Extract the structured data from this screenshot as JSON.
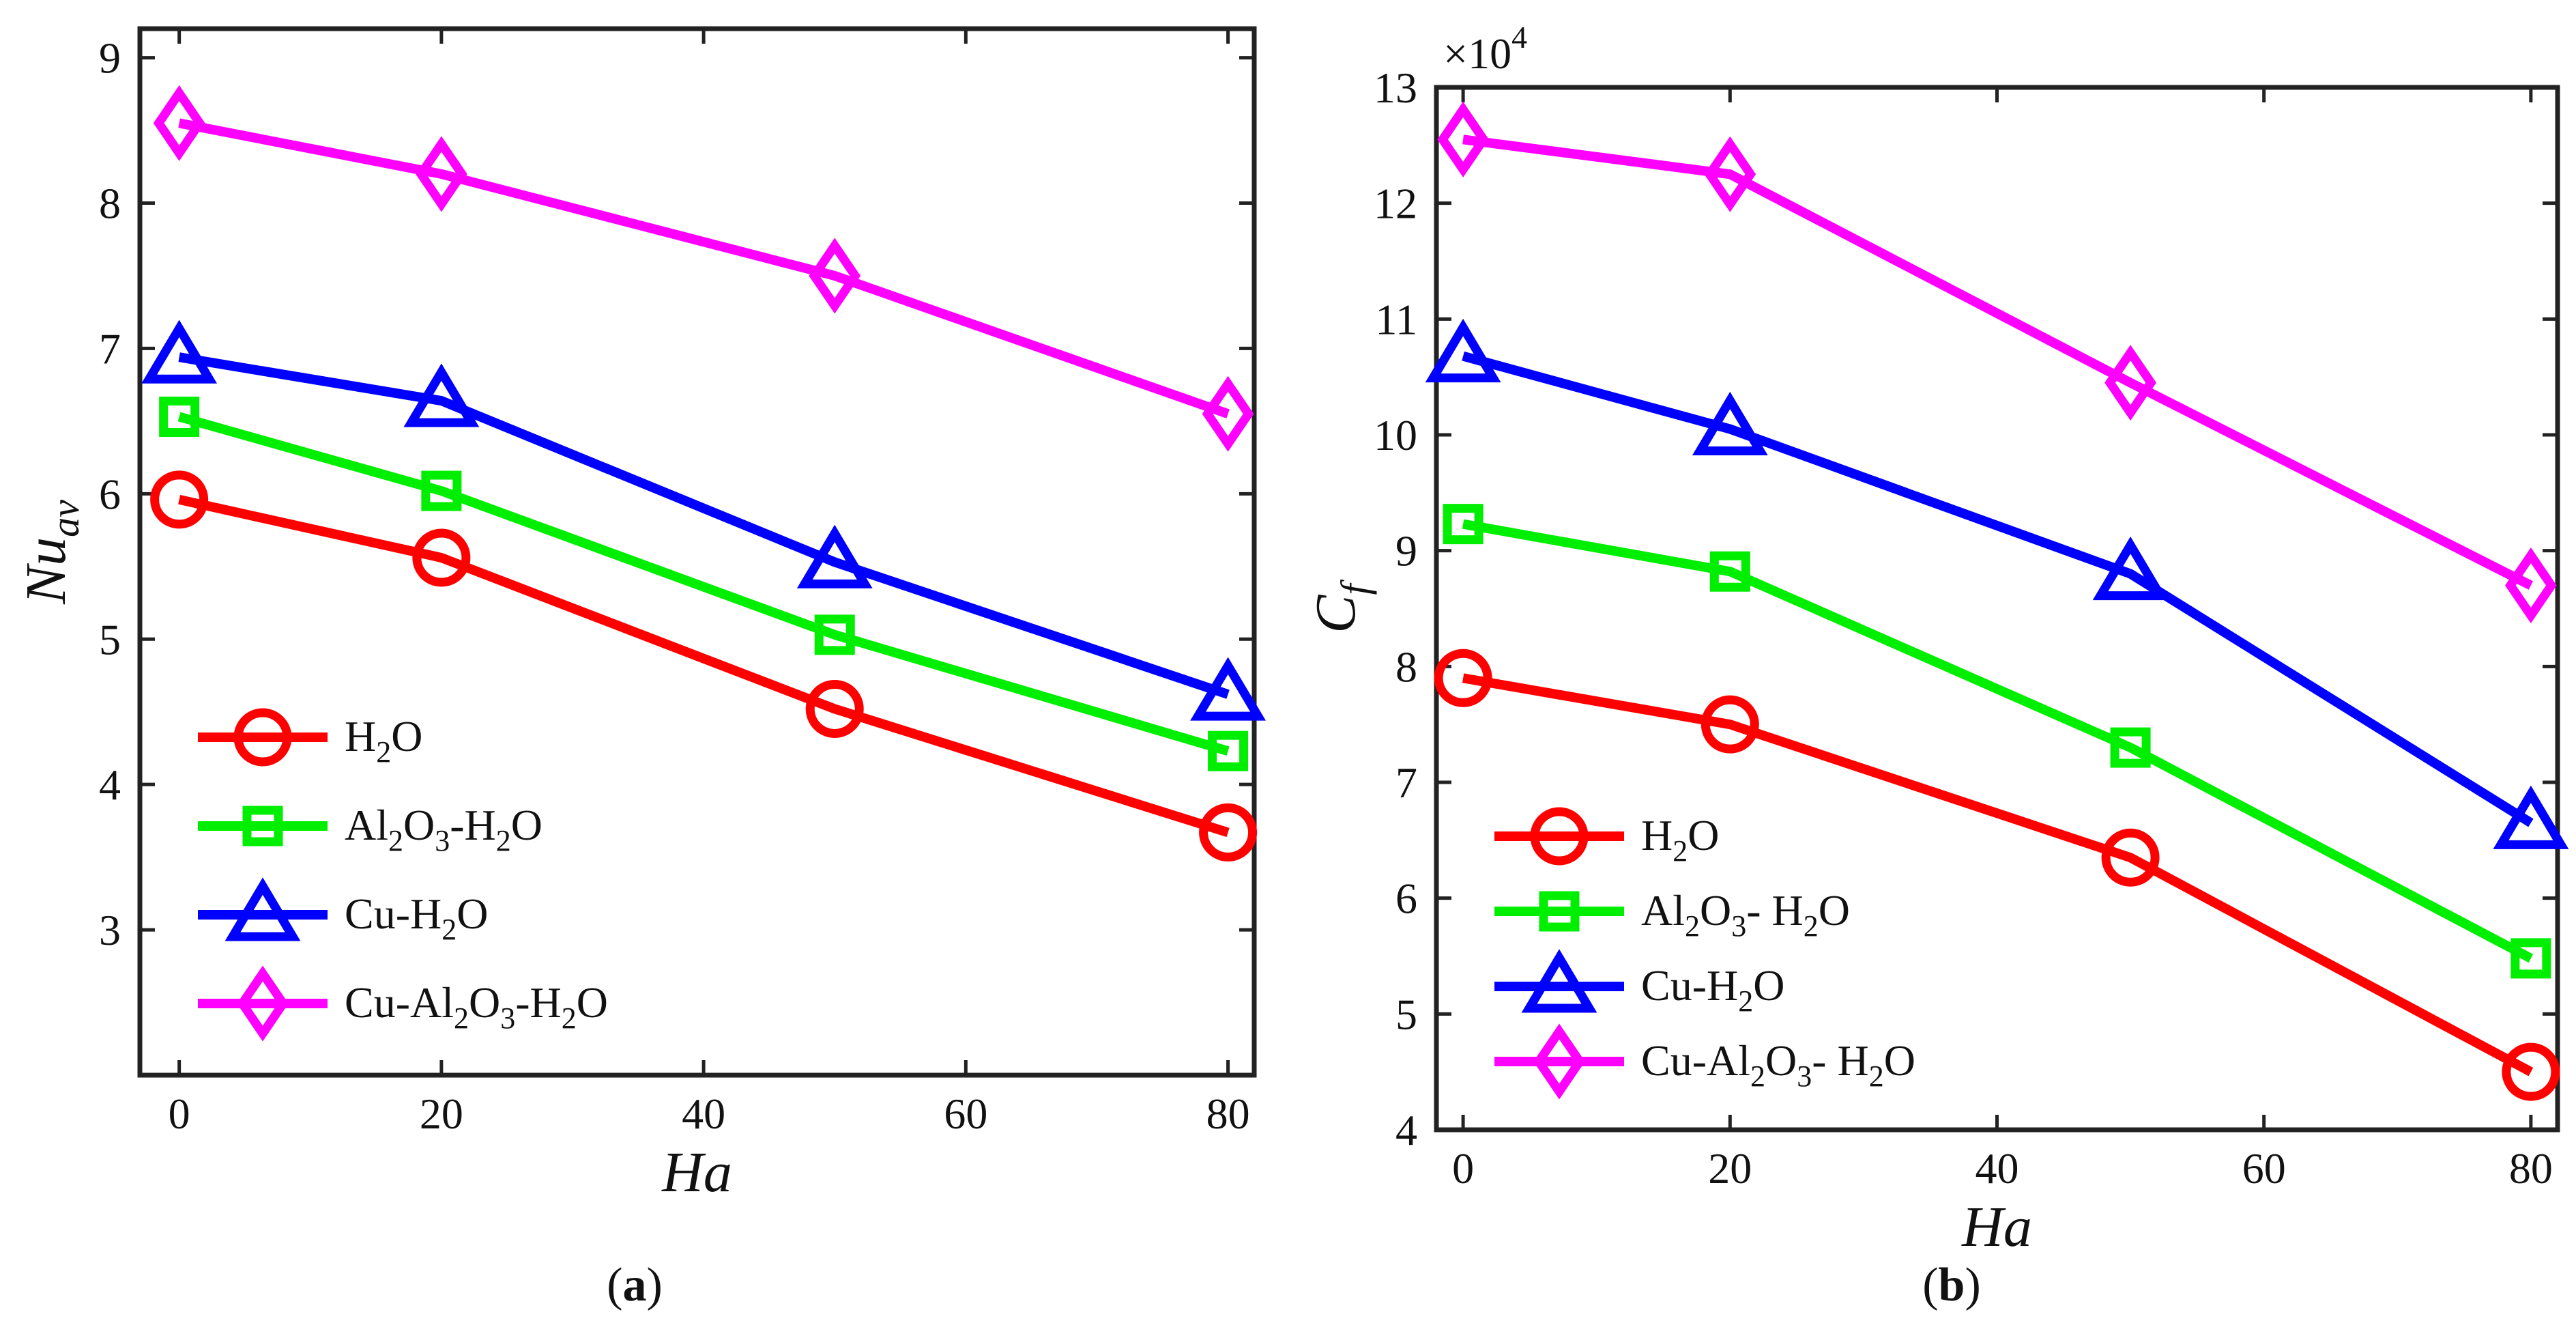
{
  "colors": {
    "H2O": "#ff0000",
    "Al2O3-H2O": "#00ee00",
    "Cu-H2O": "#0000ff",
    "Cu-Al2O3-H2O": "#ff00ff"
  },
  "chart_data": [
    {
      "type": "line",
      "panel": "a",
      "caption": "(a)",
      "caption_letter": "a",
      "xlabel": "Ha",
      "ylabel": "Nu",
      "ylabel_sub": "av",
      "x": [
        0,
        20,
        50,
        80
      ],
      "xlim": [
        -3,
        82
      ],
      "ylim": [
        2,
        9.2
      ],
      "xticks": [
        0,
        20,
        40,
        60,
        80
      ],
      "yticks": [
        3,
        4,
        5,
        6,
        7,
        8,
        9
      ],
      "legend_position": "bottom-left",
      "series": [
        {
          "name": "H2O",
          "label_parts": [
            [
              "H",
              "n"
            ],
            [
              "2",
              "s"
            ],
            [
              "O",
              "n"
            ]
          ],
          "marker": "circle",
          "values": [
            5.96,
            5.56,
            4.52,
            3.67
          ]
        },
        {
          "name": "Al2O3-H2O",
          "label_parts": [
            [
              "Al",
              "n"
            ],
            [
              "2",
              "s"
            ],
            [
              "O",
              "n"
            ],
            [
              "3",
              "s"
            ],
            [
              "-H",
              "n"
            ],
            [
              "2",
              "s"
            ],
            [
              "O",
              "n"
            ]
          ],
          "marker": "square",
          "values": [
            6.53,
            6.02,
            5.03,
            4.23
          ]
        },
        {
          "name": "Cu-H2O",
          "label_parts": [
            [
              "Cu-H",
              "n"
            ],
            [
              "2",
              "s"
            ],
            [
              "O",
              "n"
            ]
          ],
          "marker": "triangle",
          "values": [
            6.94,
            6.64,
            5.53,
            4.62
          ]
        },
        {
          "name": "Cu-Al2O3-H2O",
          "label_parts": [
            [
              "Cu-Al",
              "n"
            ],
            [
              "2",
              "s"
            ],
            [
              "O",
              "n"
            ],
            [
              "3",
              "s"
            ],
            [
              "-H",
              "n"
            ],
            [
              "2",
              "s"
            ],
            [
              "O",
              "n"
            ]
          ],
          "marker": "diamond",
          "values": [
            8.55,
            8.2,
            7.5,
            6.55
          ]
        }
      ]
    },
    {
      "type": "line",
      "panel": "b",
      "caption": "(b)",
      "caption_letter": "b",
      "xlabel": "Ha",
      "ylabel": "C",
      "ylabel_sub": "f",
      "y_scale_note": "×10",
      "y_scale_exp": "4",
      "x": [
        0,
        20,
        50,
        80
      ],
      "xlim": [
        -2,
        82
      ],
      "ylim": [
        4,
        13
      ],
      "xticks": [
        0,
        20,
        40,
        60,
        80
      ],
      "yticks": [
        4,
        5,
        6,
        7,
        8,
        9,
        10,
        11,
        12,
        13
      ],
      "legend_position": "bottom-left",
      "series": [
        {
          "name": "H2O",
          "label_parts": [
            [
              "H",
              "n"
            ],
            [
              "2",
              "s"
            ],
            [
              "O",
              "n"
            ]
          ],
          "marker": "circle",
          "values": [
            7.9,
            7.5,
            6.35,
            4.5
          ]
        },
        {
          "name": "Al2O3- H2O",
          "label_parts": [
            [
              "Al",
              "n"
            ],
            [
              "2",
              "s"
            ],
            [
              "O",
              "n"
            ],
            [
              "3",
              "s"
            ],
            [
              "- H",
              "n"
            ],
            [
              "2",
              "s"
            ],
            [
              "O",
              "n"
            ]
          ],
          "marker": "square",
          "values": [
            9.23,
            8.82,
            7.3,
            5.48
          ]
        },
        {
          "name": "Cu-H2O",
          "label_parts": [
            [
              "Cu-H",
              "n"
            ],
            [
              "2",
              "s"
            ],
            [
              "O",
              "n"
            ]
          ],
          "marker": "triangle",
          "values": [
            10.68,
            10.05,
            8.8,
            6.65
          ]
        },
        {
          "name": "Cu-Al2O3- H2O",
          "label_parts": [
            [
              "Cu-Al",
              "n"
            ],
            [
              "2",
              "s"
            ],
            [
              "O",
              "n"
            ],
            [
              "3",
              "s"
            ],
            [
              "- H",
              "n"
            ],
            [
              "2",
              "s"
            ],
            [
              "O",
              "n"
            ]
          ],
          "marker": "diamond",
          "values": [
            12.55,
            12.25,
            10.45,
            8.7
          ]
        }
      ]
    }
  ]
}
